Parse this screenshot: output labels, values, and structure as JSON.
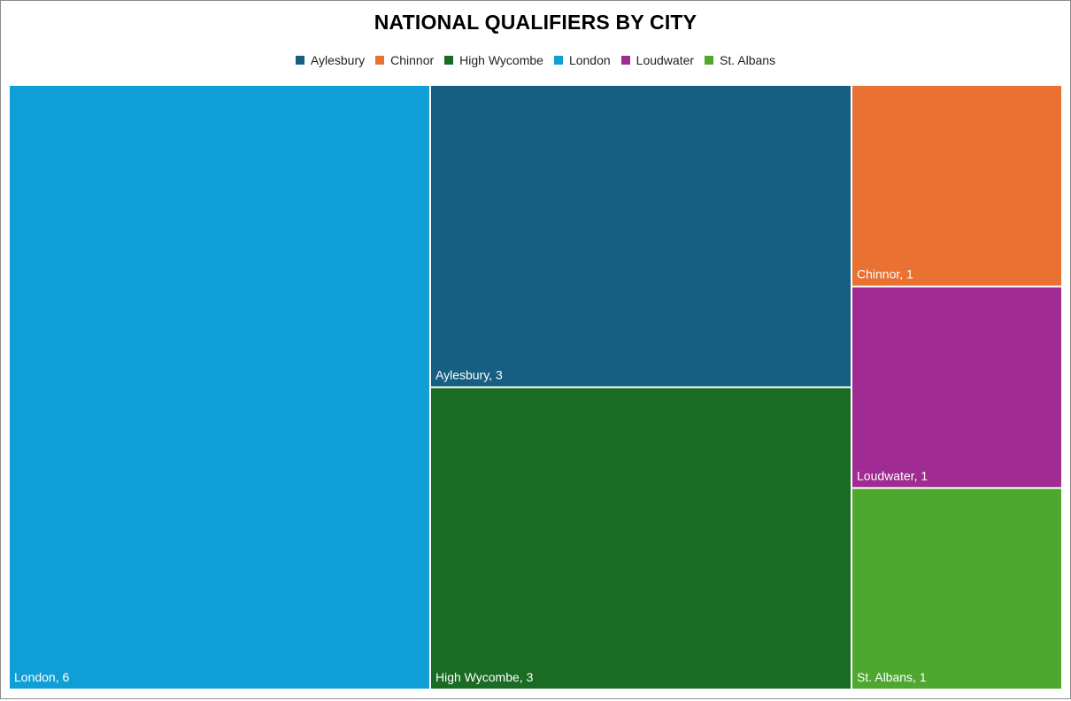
{
  "chart_data": {
    "type": "treemap",
    "title": "NATIONAL QUALIFIERS BY CITY",
    "legend_position": "top",
    "series": [
      {
        "name": "Aylesbury",
        "value": 3,
        "label": "Aylesbury, 3",
        "color": "#165f82"
      },
      {
        "name": "Chinnor",
        "value": 1,
        "label": "Chinnor, 1",
        "color": "#e97131"
      },
      {
        "name": "High Wycombe",
        "value": 3,
        "label": "High Wycombe, 3",
        "color": "#1a6b24"
      },
      {
        "name": "London",
        "value": 6,
        "label": "London, 6",
        "color": "#0f9ed5"
      },
      {
        "name": "Loudwater",
        "value": 1,
        "label": "Loudwater, 1",
        "color": "#a02b93"
      },
      {
        "name": "St. Albans",
        "value": 1,
        "label": "St. Albans, 1",
        "color": "#4ea72e"
      }
    ]
  }
}
